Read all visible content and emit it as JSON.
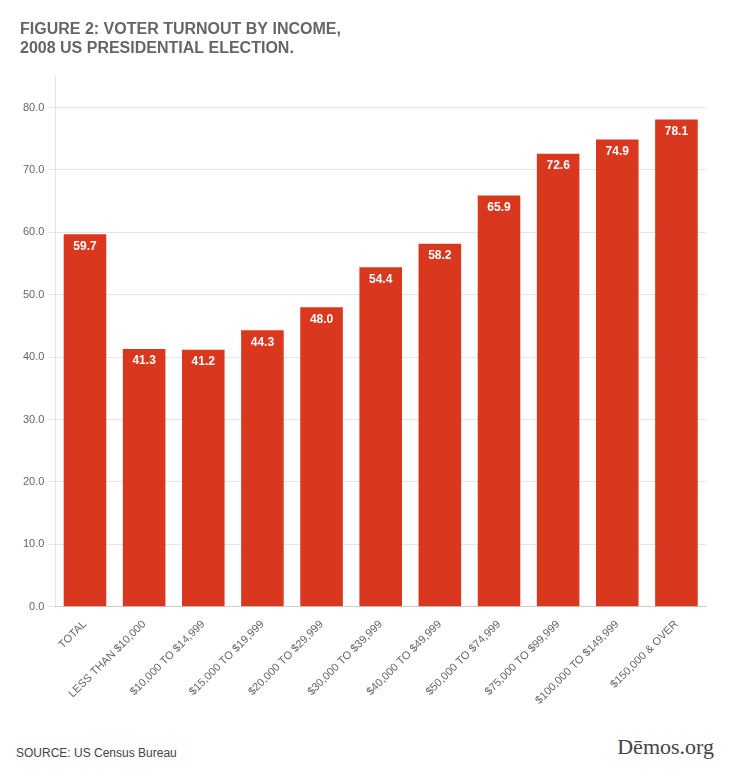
{
  "chart_data": {
    "type": "bar",
    "title": [
      "FIGURE 2: VOTER TURNOUT BY INCOME,",
      "2008 US PRESIDENTIAL ELECTION."
    ],
    "categories": [
      "TOTAL",
      "LESS THAN $10,000",
      "$10,000 TO $14,999",
      "$15,000 TO $19,999",
      "$20,000 TO $29,999",
      "$30,000 TO $39,999",
      "$40,000 TO $49,999",
      "$50,000 TO $74,999",
      "$75,000 TO $99,999",
      "$100,000 TO $149,999",
      "$150,000 & OVER"
    ],
    "values": [
      59.7,
      41.3,
      41.2,
      44.3,
      48.0,
      54.4,
      58.2,
      65.9,
      72.6,
      74.9,
      78.1
    ],
    "value_labels": [
      "59.7",
      "41.3",
      "41.2",
      "44.3",
      "48.0",
      "54.4",
      "58.2",
      "65.9",
      "72.6",
      "74.9",
      "78.1"
    ],
    "data_labels": true,
    "color": "#D9381E",
    "ylim": [
      0,
      85
    ],
    "yticks": [
      {
        "value": 0,
        "label": "0.0"
      },
      {
        "value": 10,
        "label": "10.0"
      },
      {
        "value": 20,
        "label": "20.0"
      },
      {
        "value": 30,
        "label": "30.0"
      },
      {
        "value": 40,
        "label": "40.0"
      },
      {
        "value": 50,
        "label": "50.0"
      },
      {
        "value": 60,
        "label": "60.0"
      },
      {
        "value": 70,
        "label": "70.0"
      },
      {
        "value": 80,
        "label": "80.0"
      }
    ],
    "grid": true,
    "annotations": [
      "SOURCE:  US Census Bureau",
      "Dēmos.org"
    ]
  }
}
